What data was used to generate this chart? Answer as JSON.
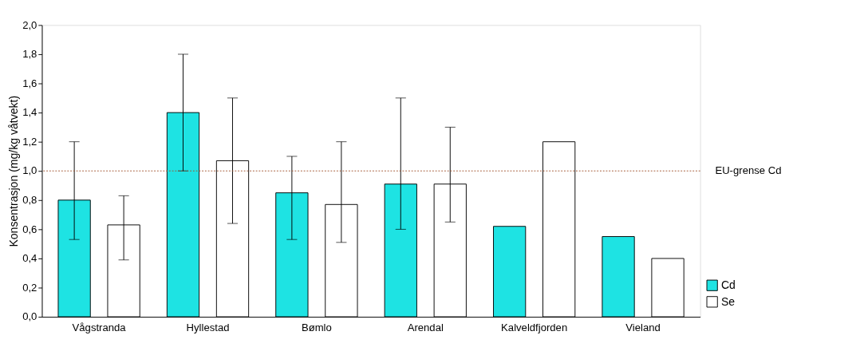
{
  "chart_data": {
    "type": "bar",
    "ylabel": "Konsentrasjon (mg/kg våtvekt)",
    "categories": [
      "Vågstranda",
      "Hyllestad",
      "Bømlo",
      "Arendal",
      "Kalveldfjorden",
      "Vieland"
    ],
    "series": [
      {
        "name": "Cd",
        "color": "#1ee3e3",
        "values": [
          0.8,
          1.4,
          0.85,
          0.91,
          0.62,
          0.55
        ],
        "errors": [
          [
            0.53,
            1.2
          ],
          [
            1.0,
            1.8
          ],
          [
            0.53,
            1.1
          ],
          [
            0.6,
            1.5
          ],
          null,
          null
        ]
      },
      {
        "name": "Se",
        "color": "#ffffff",
        "values": [
          0.63,
          1.07,
          0.77,
          0.91,
          1.2,
          0.4
        ],
        "errors": [
          [
            0.39,
            0.83
          ],
          [
            0.64,
            1.5
          ],
          [
            0.51,
            1.2
          ],
          [
            0.65,
            1.3
          ],
          null,
          null
        ]
      }
    ],
    "ylim": [
      0,
      2
    ],
    "yticks": [
      {
        "value": 0,
        "label": "0,0"
      },
      {
        "value": 0.2,
        "label": "0,2"
      },
      {
        "value": 0.4,
        "label": "0,4"
      },
      {
        "value": 0.6,
        "label": "0,6"
      },
      {
        "value": 0.8,
        "label": "0,8"
      },
      {
        "value": 1.0,
        "label": "1,0"
      },
      {
        "value": 1.2,
        "label": "1,2"
      },
      {
        "value": 1.4,
        "label": "1,4"
      },
      {
        "value": 1.6,
        "label": "1,6"
      },
      {
        "value": 1.8,
        "label": "1,8"
      },
      {
        "value": 2.0,
        "label": "2,0"
      }
    ],
    "ref_lines": [
      {
        "axis": "y",
        "value": 1.0,
        "label": "EU-grense Cd",
        "color": "#a0522d",
        "line_style": "dotted"
      }
    ],
    "grid": false,
    "legend": "bottom right"
  }
}
